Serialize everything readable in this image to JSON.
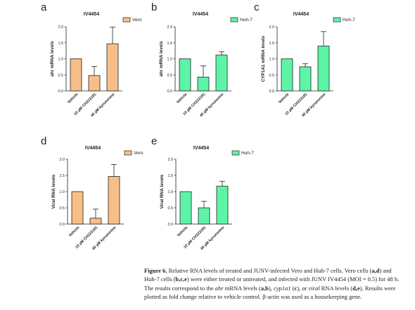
{
  "colors": {
    "vero": "#f7bf87",
    "huh7": "#5ef4a8",
    "stroke": "#222222"
  },
  "chart_data": [
    {
      "id": "a",
      "type": "bar",
      "title": "IV4454",
      "ylabel": "ahr mRNA levels",
      "categories": [
        "Vehicle",
        "10 µM CH223191",
        "40 µM kynurenine"
      ],
      "series": [
        {
          "name": "Vero",
          "values": [
            1.0,
            0.48,
            1.47
          ],
          "errors": [
            0,
            0.28,
            0.52
          ]
        }
      ],
      "ylim": [
        0,
        2.0
      ],
      "yticks": [
        "0.0",
        "0.5",
        "1.0",
        "1.5",
        "2.0"
      ],
      "legend": "top-right",
      "grid": false
    },
    {
      "id": "b",
      "type": "bar",
      "title": "IV4454",
      "ylabel": "ahr mRNA levels",
      "categories": [
        "Vehicle",
        "10 µM CH223191",
        "40 µM kynurenine"
      ],
      "series": [
        {
          "name": "Huh-7",
          "values": [
            1.0,
            0.43,
            1.12
          ],
          "errors": [
            0,
            0.35,
            0.1
          ]
        }
      ],
      "ylim": [
        0,
        2.0
      ],
      "yticks": [
        "0.0",
        "0.5",
        "1.0",
        "1.5",
        "2.0"
      ],
      "legend": "top-right",
      "grid": false
    },
    {
      "id": "c",
      "type": "bar",
      "title": "IV4454",
      "ylabel": "CYP1A1 mRNA levels",
      "categories": [
        "Vehicle",
        "10 µM CH223191",
        "40 µM kynurenine"
      ],
      "series": [
        {
          "name": "Huh-7",
          "values": [
            1.0,
            0.75,
            1.4
          ],
          "errors": [
            0,
            0.1,
            0.45
          ]
        }
      ],
      "ylim": [
        0,
        2.0
      ],
      "yticks": [
        "0.0",
        "0.5",
        "1.0",
        "1.5",
        "2.0"
      ],
      "legend": "top-right",
      "grid": false
    },
    {
      "id": "d",
      "type": "bar",
      "title": "IV4454",
      "ylabel": "Viral RNA levels",
      "categories": [
        "Vehicle",
        "10 µM CH223191",
        "40 µM kynurenine"
      ],
      "series": [
        {
          "name": "Vero",
          "values": [
            1.0,
            0.18,
            1.47
          ],
          "errors": [
            0,
            0.28,
            0.37
          ]
        }
      ],
      "ylim": [
        0,
        2.0
      ],
      "yticks": [
        "0.0",
        "0.5",
        "1.0",
        "1.5",
        "2.0"
      ],
      "legend": "top-right",
      "grid": false
    },
    {
      "id": "e",
      "type": "bar",
      "title": "IV4454",
      "ylabel": "Viral RNA levels",
      "categories": [
        "Vehicle",
        "10 µM CH223191",
        "40 µM kynurenine"
      ],
      "series": [
        {
          "name": "Huh-7",
          "values": [
            1.0,
            0.5,
            1.17
          ],
          "errors": [
            0,
            0.2,
            0.15
          ]
        }
      ],
      "ylim": [
        0,
        2.0
      ],
      "yticks": [
        "0.0",
        "0.5",
        "1.0",
        "1.5",
        "2.0"
      ],
      "legend": "top-right",
      "grid": false
    }
  ],
  "caption": {
    "label": "Figure 6.",
    "s1": " Relative RNA levels of treated and JUNV-infected Vero and Huh-7 cells. Vero cells (",
    "s1b": "a,d",
    "s2": ") and Huh-7 cells (",
    "s2b": "b,c,e",
    "s3": ") were either treated or untreated, and infected with JUNV IV4454 (MOI = 0.5) for 48 h. The results correspond to the ",
    "s3i": "ahr",
    "s4": " mRNA levels (",
    "s4b": "a,b",
    "s5": "), ",
    "s5i": "cyp1a1",
    "s6": " (",
    "s6b": "c",
    "s7": "), or ",
    "s7i": "viral",
    "s8": " RNA levels (",
    "s8b": "d,e",
    "s9": "). Results were plotted as fold change relative to vehicle control. β-actin was used as a housekeeping gene."
  }
}
